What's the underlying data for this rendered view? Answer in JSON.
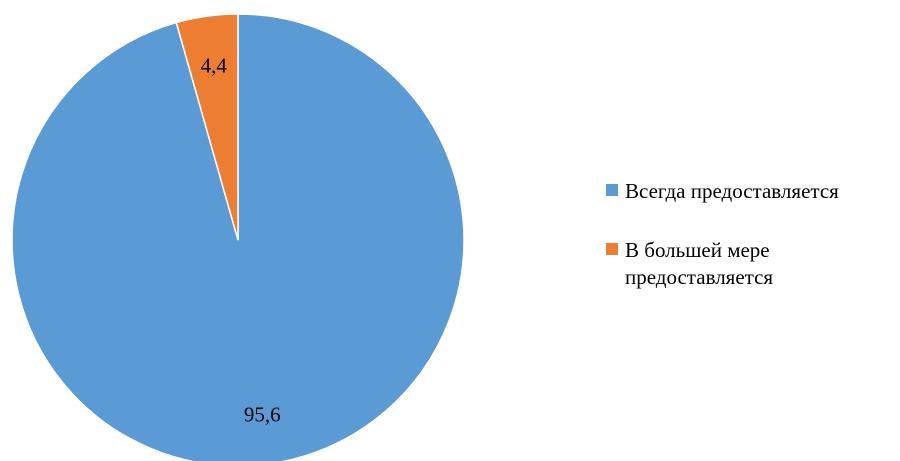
{
  "chart_data": {
    "type": "pie",
    "categories": [
      "Всегда предоставляется",
      "В большей мере предоставляется"
    ],
    "values": [
      95.6,
      4.4
    ],
    "value_labels": [
      "95,6",
      "4,4"
    ],
    "colors": [
      "#5B9BD5",
      "#ED7D31"
    ],
    "title": "",
    "legend_position": "right"
  },
  "legend": {
    "items": [
      {
        "label": "Всегда предоставляется",
        "color": "#5B9BD5"
      },
      {
        "label_line1": "В большей мере",
        "label_line2": "предоставляется",
        "color": "#ED7D31"
      }
    ]
  }
}
